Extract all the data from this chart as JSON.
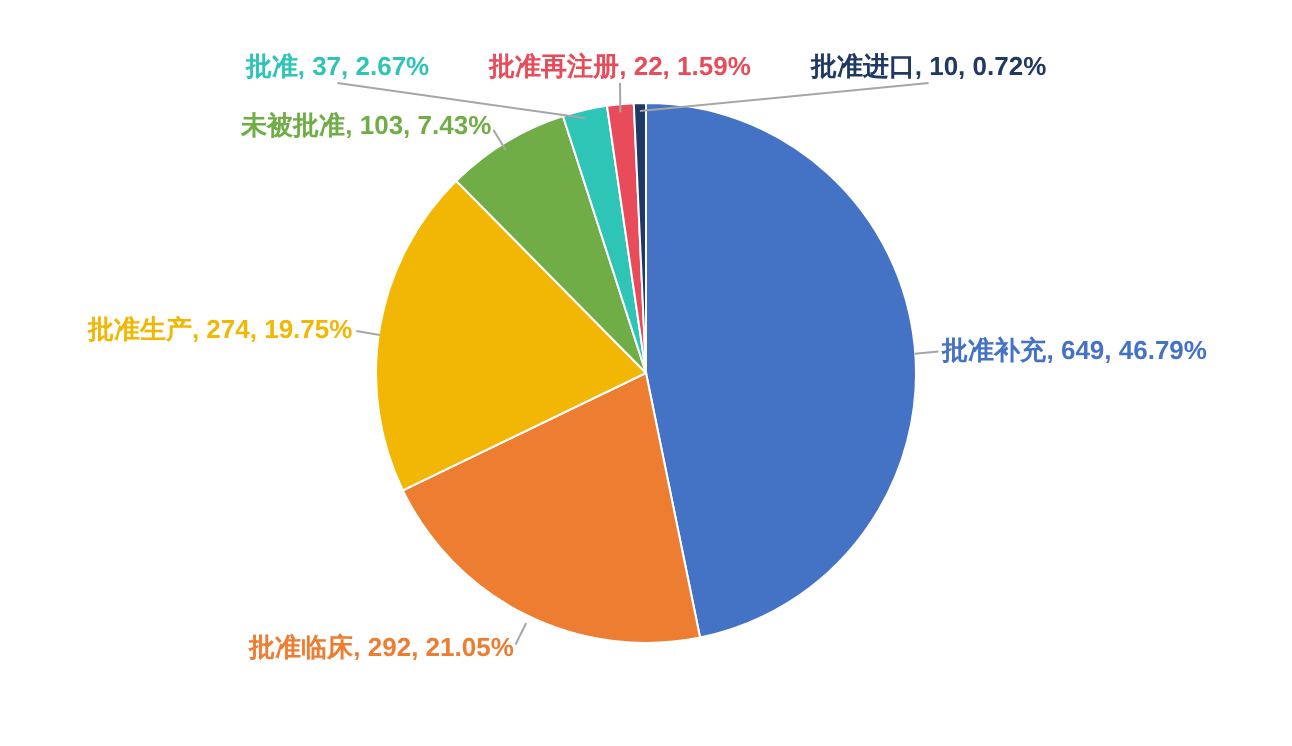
{
  "chart_data": {
    "type": "pie",
    "categories": [
      "批准补充",
      "批准临床",
      "批准生产",
      "未被批准",
      "批准",
      "批准再注册",
      "批准进口"
    ],
    "values": [
      649,
      292,
      274,
      103,
      37,
      22,
      10
    ],
    "colors": [
      "#4472c4",
      "#ed7d31",
      "#f2b705",
      "#70ad47",
      "#2ec4b6",
      "#e84c5a",
      "#203864"
    ],
    "value_labels": [
      "649, 46.79%",
      "292, 21.05%",
      "274, 19.75%",
      "103, 7.43%",
      "37, 2.67%",
      "22, 1.59%",
      "10, 0.72%"
    ]
  }
}
